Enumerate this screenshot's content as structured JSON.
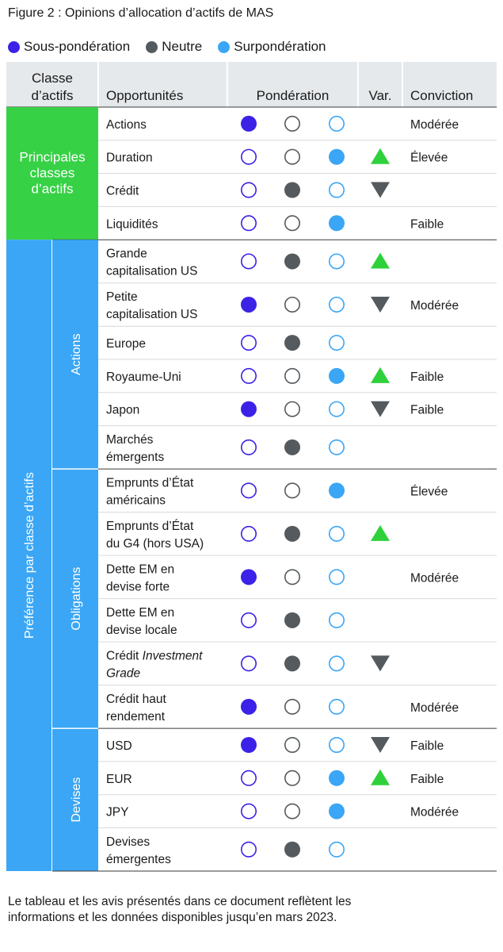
{
  "title": "Figure 2 : Opinions d’allocation d’actifs de MAS",
  "legend": [
    {
      "label": "Sous-pondération",
      "color": "#3b22e6"
    },
    {
      "label": "Neutre",
      "color": "#555a5e"
    },
    {
      "label": "Surpondération",
      "color": "#3aa6f5"
    }
  ],
  "footnote": {
    "line1": "Le tableau et les avis présentés dans ce document reflètent les",
    "line2": "informations et les données disponibles jusqu’en mars 2023."
  },
  "chart_data": {
    "type": "table",
    "columns": [
      "Classe d’actifs",
      "Opportunités",
      "Pondération",
      "Var.",
      "Conviction"
    ],
    "weighting_levels": [
      "Sous-pondération",
      "Neutre",
      "Surpondération"
    ],
    "colors": {
      "under": "#3b22e6",
      "neutral": "#555a5e",
      "over": "#3aa6f5",
      "up": "#2fd13a",
      "down": "#555a5e",
      "group_main": "#37d146",
      "group_pref": "#3aa6f5"
    },
    "groups": [
      {
        "label": "Principales classes d’actifs",
        "label_lines": [
          "Principales",
          "classes",
          "d’actifs"
        ],
        "color": "green",
        "subgroups": [
          {
            "label": "",
            "rows": [
              {
                "opportunity": [
                  "Actions"
                ],
                "weighting": "Sous-pondération",
                "var": "",
                "conviction": "Modérée"
              },
              {
                "opportunity": [
                  "Duration"
                ],
                "weighting": "Surpondération",
                "var": "up",
                "conviction": "Élevée"
              },
              {
                "opportunity": [
                  "Crédit"
                ],
                "weighting": "Neutre",
                "var": "down",
                "conviction": ""
              },
              {
                "opportunity": [
                  "Liquidités"
                ],
                "weighting": "Surpondération",
                "var": "",
                "conviction": "Faible"
              }
            ]
          }
        ]
      },
      {
        "label": "Préférence par classe d’actifs",
        "color": "blue",
        "subgroups": [
          {
            "label": "Actions",
            "rows": [
              {
                "opportunity": [
                  "Grande",
                  "capitalisation US"
                ],
                "weighting": "Neutre",
                "var": "up",
                "conviction": ""
              },
              {
                "opportunity": [
                  "Petite",
                  "capitalisation US"
                ],
                "weighting": "Sous-pondération",
                "var": "down",
                "conviction": "Modérée"
              },
              {
                "opportunity": [
                  "Europe"
                ],
                "weighting": "Neutre",
                "var": "",
                "conviction": ""
              },
              {
                "opportunity": [
                  "Royaume-Uni"
                ],
                "weighting": "Surpondération",
                "var": "up",
                "conviction": "Faible"
              },
              {
                "opportunity": [
                  "Japon"
                ],
                "weighting": "Sous-pondération",
                "var": "down",
                "conviction": "Faible"
              },
              {
                "opportunity": [
                  "Marchés",
                  "émergents"
                ],
                "weighting": "Neutre",
                "var": "",
                "conviction": ""
              }
            ]
          },
          {
            "label": "Obligations",
            "rows": [
              {
                "opportunity": [
                  "Emprunts d’État",
                  "américains"
                ],
                "weighting": "Surpondération",
                "var": "",
                "conviction": "Élevée"
              },
              {
                "opportunity": [
                  "Emprunts d’État",
                  "du G4 (hors USA)"
                ],
                "weighting": "Neutre",
                "var": "up",
                "conviction": ""
              },
              {
                "opportunity": [
                  "Dette EM en",
                  "devise forte"
                ],
                "weighting": "Sous-pondération",
                "var": "",
                "conviction": "Modérée"
              },
              {
                "opportunity": [
                  "Dette EM en",
                  "devise locale"
                ],
                "weighting": "Neutre",
                "var": "",
                "conviction": ""
              },
              {
                "opportunity": [
                  "Crédit Investment",
                  "Grade"
                ],
                "weighting": "Neutre",
                "var": "down",
                "conviction": ""
              },
              {
                "opportunity": [
                  "Crédit haut",
                  "rendement"
                ],
                "weighting": "Sous-pondération",
                "var": "",
                "conviction": "Modérée"
              }
            ]
          },
          {
            "label": "Devises",
            "rows": [
              {
                "opportunity": [
                  "USD"
                ],
                "weighting": "Sous-pondération",
                "var": "down",
                "conviction": "Faible"
              },
              {
                "opportunity": [
                  "EUR"
                ],
                "weighting": "Surpondération",
                "var": "up",
                "conviction": "Faible"
              },
              {
                "opportunity": [
                  "JPY"
                ],
                "weighting": "Surpondération",
                "var": "",
                "conviction": "Modérée"
              },
              {
                "opportunity": [
                  "Devises",
                  "émergentes"
                ],
                "weighting": "Neutre",
                "var": "",
                "conviction": ""
              }
            ]
          }
        ]
      }
    ]
  }
}
